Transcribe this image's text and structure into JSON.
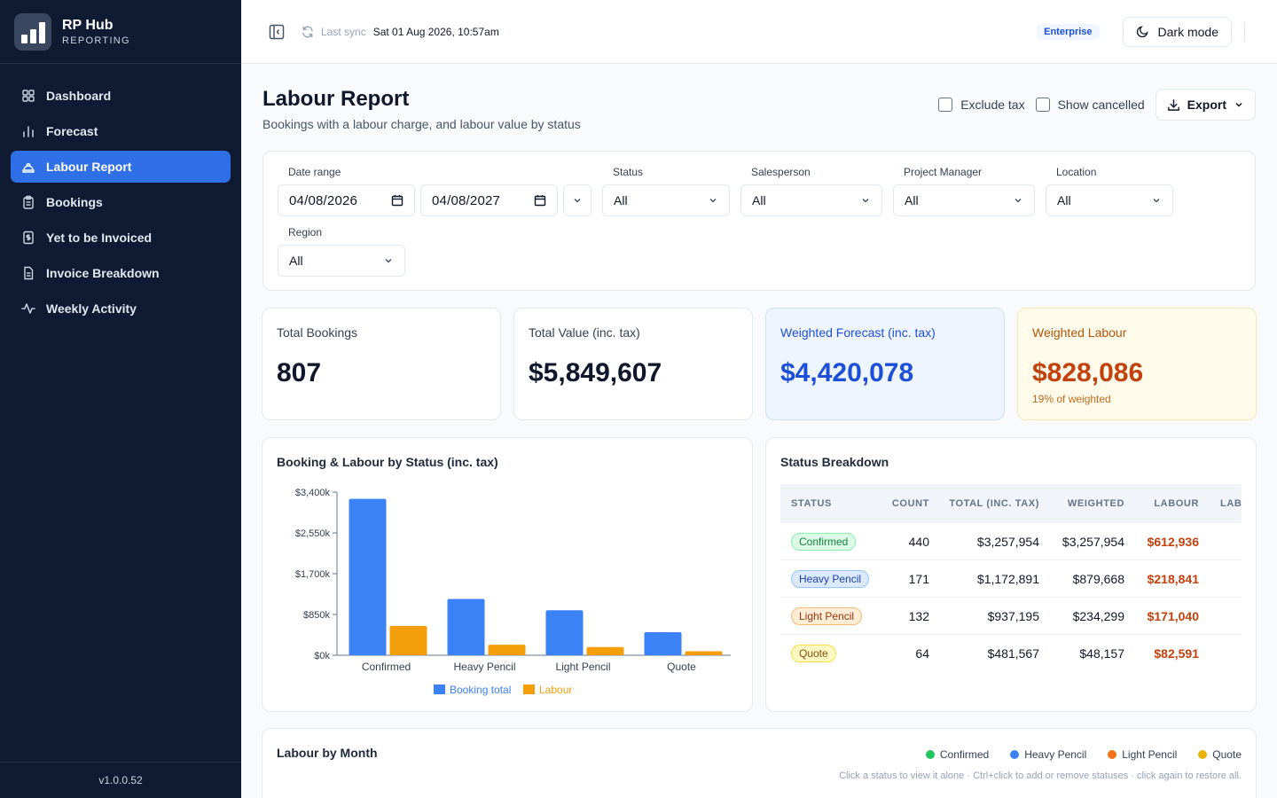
{
  "brand": {
    "name": "RP Hub",
    "subtitle": "REPORTING"
  },
  "nav": [
    {
      "label": "Dashboard",
      "icon": "grid-icon"
    },
    {
      "label": "Forecast",
      "icon": "bar-chart-icon"
    },
    {
      "label": "Labour Report",
      "icon": "hard-hat-icon",
      "active": true
    },
    {
      "label": "Bookings",
      "icon": "clipboard-icon"
    },
    {
      "label": "Yet to be Invoiced",
      "icon": "dollar-receipt-icon"
    },
    {
      "label": "Invoice Breakdown",
      "icon": "document-icon"
    },
    {
      "label": "Weekly Activity",
      "icon": "activity-icon"
    }
  ],
  "version": "v1.0.0.52",
  "topbar": {
    "sync_label": "Last sync",
    "sync_value": "Sat 01 Aug 2026, 10:57am",
    "plan": "Enterprise",
    "dark_mode_label": "Dark mode"
  },
  "page": {
    "title": "Labour Report",
    "subtitle": "Bookings with a labour charge, and labour value by status",
    "exclude_tax_label": "Exclude tax",
    "show_cancelled_label": "Show cancelled",
    "export_label": "Export"
  },
  "filters": {
    "date_range_label": "Date range",
    "date_from": "04/08/2026",
    "date_to": "04/08/2027",
    "status_label": "Status",
    "status_value": "All",
    "salesperson_label": "Salesperson",
    "salesperson_value": "All",
    "pm_label": "Project Manager",
    "pm_value": "All",
    "location_label": "Location",
    "location_value": "All",
    "region_label": "Region",
    "region_value": "All"
  },
  "kpis": {
    "total_bookings": {
      "label": "Total Bookings",
      "value": "807"
    },
    "total_value": {
      "label": "Total Value (inc. tax)",
      "value": "$5,849,607"
    },
    "weighted_forecast": {
      "label": "Weighted Forecast (inc. tax)",
      "value": "$4,420,078"
    },
    "weighted_labour": {
      "label": "Weighted Labour",
      "value": "$828,086",
      "sub": "19% of weighted"
    }
  },
  "chart_card": {
    "title": "Booking & Labour by Status (inc. tax)"
  },
  "chart_data": {
    "type": "bar",
    "title": "Booking & Labour by Status (inc. tax)",
    "categories": [
      "Confirmed",
      "Heavy Pencil",
      "Light Pencil",
      "Quote"
    ],
    "series": [
      {
        "name": "Booking total",
        "color": "#3b82f6",
        "values": [
          3257954,
          1172891,
          937195,
          481567
        ]
      },
      {
        "name": "Labour",
        "color": "#f59e0b",
        "values": [
          612936,
          218841,
          171040,
          82591
        ]
      }
    ],
    "ylim": [
      0,
      3400000
    ],
    "yticks": [
      0,
      850000,
      1700000,
      2550000,
      3400000
    ],
    "ytick_labels": [
      "$0k",
      "$850k",
      "$1,700k",
      "$2,550k",
      "$3,400k"
    ],
    "legend": "bottom",
    "grid": false
  },
  "table": {
    "title": "Status Breakdown",
    "headers": [
      "STATUS",
      "COUNT",
      "TOTAL (INC. TAX)",
      "WEIGHTED",
      "LABOUR",
      "LABO"
    ],
    "rows": [
      {
        "status": "Confirmed",
        "count": "440",
        "total": "$3,257,954",
        "weighted": "$3,257,954",
        "labour": "$612,936",
        "pill_bg": "#dcfce7",
        "pill_border": "#86efac",
        "pill_fg": "#15803d"
      },
      {
        "status": "Heavy Pencil",
        "count": "171",
        "total": "$1,172,891",
        "weighted": "$879,668",
        "labour": "$218,841",
        "pill_bg": "#dbeafe",
        "pill_border": "#93c5fd",
        "pill_fg": "#1e40af"
      },
      {
        "status": "Light Pencil",
        "count": "132",
        "total": "$937,195",
        "weighted": "$234,299",
        "labour": "$171,040",
        "pill_bg": "#ffedd5",
        "pill_border": "#fdba74",
        "pill_fg": "#9a3412"
      },
      {
        "status": "Quote",
        "count": "64",
        "total": "$481,567",
        "weighted": "$48,157",
        "labour": "$82,591",
        "pill_bg": "#fef9c3",
        "pill_border": "#fde047",
        "pill_fg": "#854d0e"
      }
    ]
  },
  "month_card": {
    "title": "Labour by Month",
    "legend": [
      {
        "label": "Confirmed",
        "color": "#22c55e"
      },
      {
        "label": "Heavy Pencil",
        "color": "#3b82f6"
      },
      {
        "label": "Light Pencil",
        "color": "#f97316"
      },
      {
        "label": "Quote",
        "color": "#eab308"
      }
    ],
    "hint": "Click a status to view it alone · Ctrl+click to add or remove statuses · click again to restore all."
  }
}
